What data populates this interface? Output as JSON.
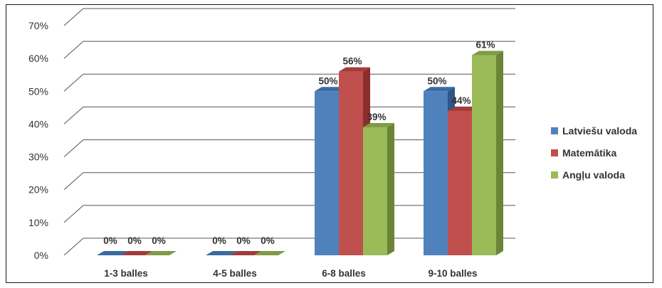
{
  "chart_data": {
    "type": "bar",
    "categories": [
      "1-3 balles",
      "4-5 balles",
      "6-8 balles",
      "9-10 balles"
    ],
    "series": [
      {
        "name": "Latviešu valoda",
        "values": [
          0,
          0,
          50,
          50
        ],
        "color": "#4F81BD",
        "top": "#3A6AA3",
        "side": "#2E5687"
      },
      {
        "name": "Matemātika",
        "values": [
          0,
          0,
          56,
          44
        ],
        "color": "#C0504D",
        "top": "#A33B38",
        "side": "#8B2E2B"
      },
      {
        "name": "Angļu valoda",
        "values": [
          0,
          0,
          39,
          61
        ],
        "color": "#9BBB59",
        "top": "#7F9C44",
        "side": "#6A8537"
      }
    ],
    "data_labels": [
      [
        "0%",
        "0%",
        "50%",
        "50%"
      ],
      [
        "0%",
        "0%",
        "56%",
        "44%"
      ],
      [
        "0%",
        "0%",
        "39%",
        "61%"
      ]
    ],
    "ylim": [
      0,
      70
    ],
    "yticks": [
      "0%",
      "10%",
      "20%",
      "30%",
      "40%",
      "50%",
      "60%",
      "70%"
    ],
    "grid": true,
    "legend_position": "right",
    "view": "3d"
  }
}
